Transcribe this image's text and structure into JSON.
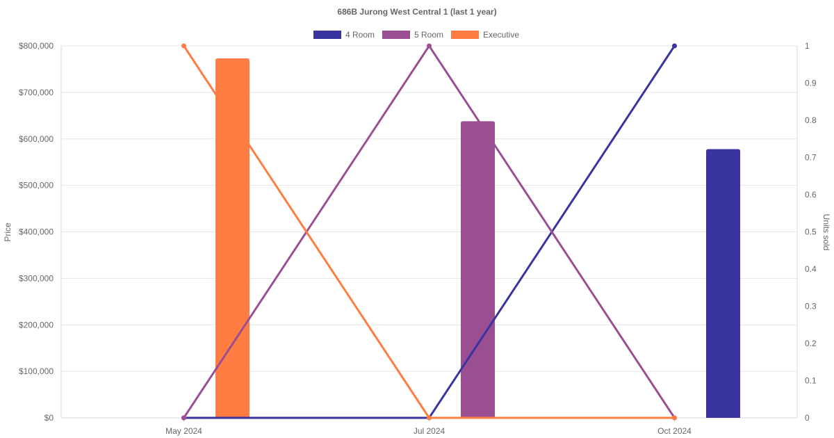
{
  "chart_data": {
    "type": "bar",
    "title": "686B Jurong West Central 1 (last 1 year)",
    "categories": [
      "May 2024",
      "Jul 2024",
      "Oct 2024"
    ],
    "ylabel": "Price",
    "y2label": "Units sold",
    "ylim": [
      0,
      800000
    ],
    "y2lim": [
      0,
      1
    ],
    "y_ticks": [
      "$0",
      "$100,000",
      "$200,000",
      "$300,000",
      "$400,000",
      "$500,000",
      "$600,000",
      "$700,000",
      "$800,000"
    ],
    "y2_ticks": [
      "0",
      "0.1",
      "0.2",
      "0.3",
      "0.4",
      "0.5",
      "0.6",
      "0.7",
      "0.8",
      "0.9",
      "1"
    ],
    "legend_position": "top",
    "grid": true,
    "series": [
      {
        "name": "4 Room",
        "color": "#3a34a0",
        "bar_values": [
          null,
          null,
          578000
        ],
        "units_sold": [
          0,
          0,
          1
        ]
      },
      {
        "name": "5 Room",
        "color": "#9b4f93",
        "bar_values": [
          null,
          638000,
          null
        ],
        "units_sold": [
          0,
          1,
          0
        ]
      },
      {
        "name": "Executive",
        "color": "#ff7c43",
        "bar_values": [
          773000,
          null,
          null
        ],
        "units_sold": [
          1,
          0,
          0
        ]
      }
    ]
  }
}
